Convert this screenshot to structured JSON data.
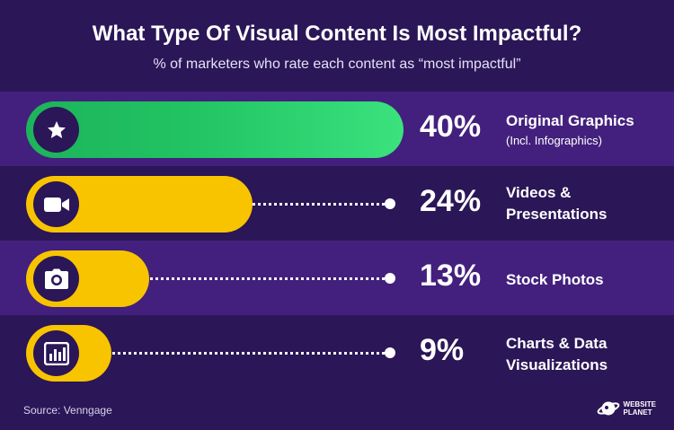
{
  "title": "What Type Of Visual Content Is Most Impactful?",
  "subtitle": "% of marketers who rate each content as “most impactful”",
  "source": "Source: Venngage",
  "brand": {
    "line1": "WEBSITE",
    "line2": "PLANET"
  },
  "colors": {
    "background": "#2b1657",
    "band_alt": "#43207d",
    "green": "#22c463",
    "yellow": "#f8c400",
    "white": "#ffffff"
  },
  "chart_data": {
    "type": "bar",
    "orientation": "horizontal",
    "categories": [
      "Original Graphics (Incl. Infographics)",
      "Videos & Presentations",
      "Stock Photos",
      "Charts & Data Visualizations"
    ],
    "values": [
      40,
      24,
      13,
      9
    ],
    "unit": "%",
    "value_labels": [
      "40%",
      "24%",
      "13%",
      "9%"
    ],
    "icons": [
      "star-icon",
      "video-camera-icon",
      "camera-icon",
      "bar-chart-icon"
    ],
    "bar_colors": [
      "#22c463",
      "#f8c400",
      "#f8c400",
      "#f8c400"
    ],
    "grid": false,
    "legend": "none"
  },
  "rows": [
    {
      "pct": "40%",
      "label": "Original Graphics",
      "sublabel": "(Incl. Infographics)"
    },
    {
      "pct": "24%",
      "label_line1": "Videos &",
      "label_line2": "Presentations"
    },
    {
      "pct": "13%",
      "label": "Stock Photos"
    },
    {
      "pct": "9%",
      "label_line1": "Charts & Data",
      "label_line2": "Visualizations"
    }
  ]
}
